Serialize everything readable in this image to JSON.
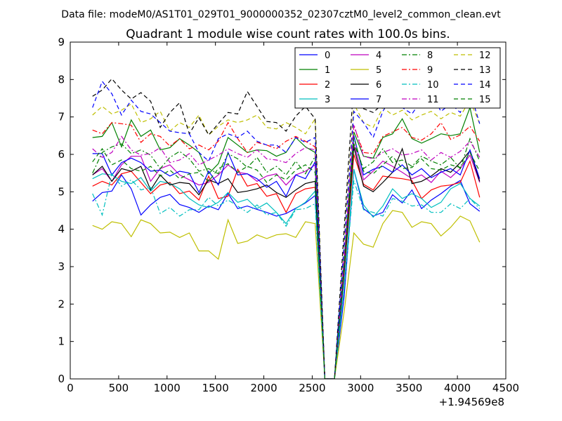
{
  "figure": {
    "suptitle": "Data file: modeM0/AS1T01_029T01_9000000352_02307cztM0_level2_common_clean.evt"
  },
  "chart_data": {
    "type": "line",
    "title": "Quadrant 1 module wise count rates with 100.0s bins.",
    "xlabel": "",
    "ylabel": "",
    "x_offset_label": "+1.94569e8",
    "xlim": [
      0,
      4500
    ],
    "ylim": [
      0,
      9
    ],
    "xticks": [
      0,
      500,
      1000,
      1500,
      2000,
      2500,
      3000,
      3500,
      4000,
      4500
    ],
    "yticks": [
      0,
      1,
      2,
      3,
      4,
      5,
      6,
      7,
      8,
      9
    ],
    "x": [
      230,
      330,
      430,
      530,
      630,
      730,
      830,
      930,
      1030,
      1130,
      1230,
      1330,
      1430,
      1530,
      1630,
      1730,
      1830,
      1930,
      2030,
      2130,
      2230,
      2330,
      2430,
      2530,
      2630,
      2730,
      2830,
      2930,
      3030,
      3130,
      3230,
      3330,
      3430,
      3530,
      3630,
      3730,
      3830,
      3930,
      4030,
      4130,
      4230
    ],
    "series": [
      {
        "name": "0",
        "color": "#0000ff",
        "dash": "solid",
        "values": [
          4.75,
          4.98,
          5.02,
          5.45,
          5.08,
          4.38,
          4.65,
          4.85,
          4.93,
          4.66,
          4.58,
          4.45,
          4.62,
          4.52,
          4.96,
          4.55,
          4.62,
          4.53,
          4.45,
          4.35,
          4.42,
          4.56,
          4.7,
          4.9,
          0,
          0,
          2.2,
          5.6,
          4.55,
          4.35,
          4.45,
          4.92,
          4.7,
          5.05,
          4.55,
          4.78,
          4.95,
          5.15,
          5.3,
          4.68,
          4.48
        ]
      },
      {
        "name": "1",
        "color": "#008000",
        "dash": "solid",
        "values": [
          6.45,
          6.48,
          6.85,
          6.2,
          6.92,
          6.48,
          6.65,
          6.12,
          6.18,
          6.42,
          6.25,
          6.05,
          5.48,
          5.75,
          6.45,
          6.25,
          6.05,
          6.12,
          6.1,
          5.95,
          6.05,
          6.45,
          6.2,
          6.05,
          0,
          0,
          3.2,
          6.6,
          5.95,
          5.9,
          6.45,
          6.55,
          6.95,
          6.42,
          6.3,
          6.42,
          6.55,
          6.5,
          6.55,
          7.25,
          6.05
        ]
      },
      {
        "name": "2",
        "color": "#ff0000",
        "dash": "solid",
        "values": [
          5.15,
          5.28,
          5.18,
          5.48,
          5.55,
          5.25,
          4.95,
          5.18,
          5.25,
          4.95,
          5.02,
          4.78,
          5.42,
          4.82,
          4.88,
          5.6,
          5.15,
          5.22,
          4.88,
          4.95,
          4.45,
          4.95,
          5.08,
          5.12,
          0,
          0,
          2.8,
          6.0,
          5.2,
          5.05,
          5.42,
          5.38,
          5.35,
          5.3,
          4.82,
          5.05,
          5.15,
          5.18,
          5.25,
          5.82,
          4.85
        ]
      },
      {
        "name": "3",
        "color": "#00bfbf",
        "dash": "solid",
        "values": [
          5.35,
          5.48,
          5.45,
          5.28,
          5.22,
          5.38,
          5.02,
          5.28,
          5.22,
          5.08,
          4.82,
          4.65,
          4.58,
          4.72,
          4.98,
          4.72,
          4.8,
          4.55,
          4.7,
          4.45,
          4.15,
          4.55,
          4.72,
          5.02,
          0,
          0,
          2.5,
          5.6,
          4.65,
          4.32,
          4.62,
          5.08,
          4.82,
          4.95,
          4.82,
          4.58,
          4.72,
          5.08,
          5.22,
          4.82,
          4.62
        ]
      },
      {
        "name": "4",
        "color": "#bf00bf",
        "dash": "solid",
        "values": [
          5.45,
          5.62,
          5.28,
          5.72,
          5.95,
          5.95,
          5.28,
          5.62,
          5.72,
          5.45,
          5.32,
          5.18,
          5.25,
          5.45,
          5.72,
          5.52,
          5.48,
          5.28,
          5.42,
          5.48,
          5.18,
          5.45,
          5.55,
          5.72,
          0,
          0,
          2.9,
          6.3,
          5.32,
          5.55,
          5.82,
          5.68,
          5.52,
          5.35,
          5.45,
          5.25,
          5.55,
          5.38,
          5.62,
          5.98,
          5.25
        ]
      },
      {
        "name": "5",
        "color": "#bfbf00",
        "dash": "solid",
        "values": [
          4.1,
          4.0,
          4.2,
          4.15,
          3.8,
          4.25,
          4.15,
          3.9,
          3.92,
          3.78,
          3.9,
          3.42,
          3.42,
          3.2,
          4.25,
          3.62,
          3.68,
          3.85,
          3.75,
          3.85,
          3.88,
          3.78,
          4.2,
          4.15,
          0,
          0,
          1.8,
          3.9,
          3.6,
          3.52,
          4.15,
          4.5,
          4.45,
          4.05,
          4.2,
          4.15,
          3.82,
          4.05,
          4.35,
          4.22,
          3.65
        ]
      },
      {
        "name": "6",
        "color": "#000000",
        "dash": "solid",
        "values": [
          5.45,
          5.68,
          5.28,
          5.62,
          5.55,
          5.68,
          5.05,
          5.45,
          5.18,
          5.25,
          5.22,
          4.92,
          5.32,
          5.22,
          5.35,
          4.98,
          5.02,
          5.08,
          5.18,
          4.98,
          4.85,
          5.05,
          5.22,
          5.28,
          0,
          0,
          2.9,
          6.2,
          5.15,
          5.0,
          5.25,
          5.52,
          6.15,
          5.22,
          5.28,
          5.42,
          5.62,
          5.52,
          5.78,
          6.1,
          5.28
        ]
      },
      {
        "name": "7",
        "color": "#0000ff",
        "dash": "solid",
        "values": [
          6.02,
          6.02,
          5.45,
          5.78,
          5.9,
          5.78,
          5.55,
          5.58,
          5.42,
          5.55,
          5.5,
          4.98,
          5.55,
          5.18,
          6.05,
          5.45,
          5.48,
          5.35,
          5.12,
          5.28,
          4.88,
          5.45,
          5.35,
          5.8,
          0,
          0,
          3.0,
          6.5,
          5.45,
          5.6,
          5.68,
          5.52,
          5.72,
          5.45,
          5.62,
          5.38,
          5.52,
          5.62,
          5.45,
          6.12,
          5.35
        ]
      },
      {
        "name": "8",
        "color": "#008000",
        "dash": "dashdot",
        "values": [
          5.5,
          6.05,
          6.2,
          6.28,
          6.02,
          6.12,
          5.98,
          5.62,
          5.92,
          6.08,
          5.88,
          5.55,
          5.62,
          5.48,
          6.02,
          5.88,
          5.65,
          5.92,
          5.52,
          5.68,
          5.45,
          5.82,
          5.48,
          5.95,
          0,
          0,
          3.1,
          6.3,
          5.62,
          5.8,
          6.15,
          5.78,
          5.85,
          5.68,
          5.95,
          5.82,
          5.72,
          5.92,
          5.62,
          6.42,
          5.82
        ]
      },
      {
        "name": "9",
        "color": "#ff0000",
        "dash": "dashdot",
        "values": [
          6.65,
          6.55,
          6.85,
          6.82,
          6.78,
          6.32,
          6.55,
          6.48,
          6.22,
          6.42,
          6.15,
          6.25,
          6.12,
          6.35,
          6.85,
          6.42,
          6.05,
          6.32,
          6.25,
          6.15,
          6.35,
          6.48,
          6.35,
          6.2,
          0,
          0,
          3.2,
          6.75,
          6.05,
          6.02,
          6.48,
          6.6,
          6.72,
          6.45,
          6.38,
          6.55,
          6.85,
          6.4,
          6.52,
          6.75,
          6.35
        ]
      },
      {
        "name": "10",
        "color": "#00bfbf",
        "dash": "dashdot",
        "values": [
          4.95,
          4.38,
          5.48,
          5.15,
          5.32,
          5.05,
          5.12,
          4.42,
          4.58,
          4.35,
          4.52,
          4.52,
          4.85,
          4.62,
          4.78,
          4.62,
          4.45,
          4.65,
          4.38,
          4.45,
          4.08,
          4.52,
          4.55,
          4.68,
          0,
          0,
          2.4,
          5.3,
          4.52,
          4.45,
          4.35,
          4.82,
          4.75,
          4.62,
          4.65,
          4.45,
          4.45,
          4.68,
          4.55,
          4.82,
          4.55
        ]
      },
      {
        "name": "11",
        "color": "#bf00bf",
        "dash": "dashdot",
        "values": [
          6.15,
          5.92,
          6.05,
          6.48,
          6.12,
          5.98,
          6.02,
          6.18,
          5.78,
          5.85,
          6.02,
          5.72,
          5.85,
          5.98,
          6.15,
          6.02,
          5.92,
          6.12,
          5.88,
          5.85,
          5.78,
          6.02,
          6.18,
          6.12,
          0,
          0,
          3.3,
          6.8,
          5.95,
          5.88,
          6.05,
          6.15,
          5.98,
          6.02,
          6.12,
          5.85,
          6.05,
          5.92,
          6.08,
          6.35,
          5.92
        ]
      },
      {
        "name": "12",
        "color": "#bfbf00",
        "dash": "dashed",
        "values": [
          7.05,
          7.28,
          7.08,
          7.18,
          7.35,
          6.85,
          6.95,
          7.15,
          6.62,
          6.85,
          6.72,
          7.05,
          6.52,
          6.75,
          6.92,
          6.85,
          6.92,
          7.05,
          6.72,
          6.68,
          6.85,
          6.72,
          6.55,
          6.95,
          0,
          0,
          3.7,
          7.35,
          6.85,
          6.72,
          7.25,
          7.05,
          7.18,
          6.92,
          7.05,
          7.15,
          6.95,
          7.12,
          7.02,
          7.45,
          6.82
        ]
      },
      {
        "name": "13",
        "color": "#000000",
        "dash": "dashed",
        "values": [
          7.55,
          7.72,
          8.02,
          7.72,
          7.48,
          7.65,
          7.42,
          6.72,
          7.12,
          7.38,
          6.55,
          6.98,
          6.52,
          6.82,
          7.12,
          7.08,
          7.68,
          7.28,
          6.88,
          6.85,
          6.62,
          7.02,
          7.28,
          6.95,
          0,
          0,
          4.0,
          7.95,
          7.22,
          7.12,
          7.35,
          7.78,
          7.58,
          7.45,
          7.62,
          7.72,
          7.85,
          7.68,
          8.08,
          7.45,
          7.95
        ]
      },
      {
        "name": "14",
        "color": "#0000ff",
        "dash": "dashed",
        "values": [
          7.25,
          7.95,
          7.62,
          7.05,
          7.45,
          7.15,
          7.08,
          6.85,
          6.62,
          6.58,
          6.55,
          6.05,
          5.82,
          6.42,
          6.55,
          6.45,
          6.62,
          6.35,
          6.25,
          6.25,
          6.05,
          6.45,
          6.32,
          6.45,
          0,
          0,
          3.6,
          7.15,
          6.85,
          6.45,
          7.15,
          7.62,
          7.25,
          7.08,
          7.45,
          7.62,
          7.15,
          7.35,
          7.12,
          7.68,
          6.82
        ]
      },
      {
        "name": "15",
        "color": "#008000",
        "dash": "dashed",
        "values": [
          5.8,
          6.15,
          5.72,
          5.85,
          5.62,
          5.55,
          5.68,
          5.42,
          5.58,
          5.35,
          5.48,
          5.52,
          5.28,
          5.62,
          5.75,
          5.52,
          5.68,
          5.58,
          5.25,
          5.45,
          5.32,
          5.58,
          5.72,
          5.52,
          0,
          0,
          3.0,
          6.45,
          5.55,
          5.48,
          5.72,
          5.95,
          5.62,
          5.65,
          5.88,
          5.62,
          5.58,
          5.72,
          5.65,
          6.05,
          5.55
        ]
      }
    ]
  }
}
